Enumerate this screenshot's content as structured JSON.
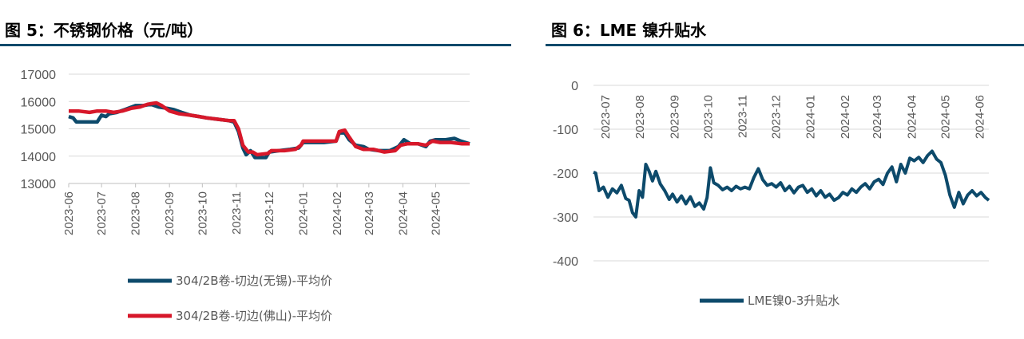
{
  "figures": {
    "left_title": "图 5：不锈钢价格（元/吨）",
    "right_title": "图 6：LME 镍升贴水"
  },
  "colors": {
    "blue": "#0d4a6b",
    "red": "#d7182a",
    "grid": "#d9d9d9",
    "axis": "#bfbfbf",
    "rule": "#0d4a6b"
  },
  "chart_data": [
    {
      "type": "line",
      "title": "图 5：不锈钢价格（元/吨）",
      "x_ticks": [
        "2023-06",
        "2023-07",
        "2023-08",
        "2023-09",
        "2023-10",
        "2023-11",
        "2023-12",
        "2024-01",
        "2024-02",
        "2024-03",
        "2024-04",
        "2024-05"
      ],
      "x_range": [
        "2023-06-01",
        "2024-06-01"
      ],
      "ylim": [
        13000,
        17000
      ],
      "y_ticks": [
        13000,
        14000,
        15000,
        16000,
        17000
      ],
      "grid": true,
      "legend_position": "bottom",
      "series": [
        {
          "name": "304/2B卷-切边(无锡)-平均价",
          "color": "#0d4a6b",
          "points": [
            [
              "2023-06-01",
              15450
            ],
            [
              "2023-06-05",
              15400
            ],
            [
              "2023-06-08",
              15250
            ],
            [
              "2023-06-20",
              15250
            ],
            [
              "2023-06-27",
              15250
            ],
            [
              "2023-07-01",
              15500
            ],
            [
              "2023-07-05",
              15450
            ],
            [
              "2023-07-08",
              15550
            ],
            [
              "2023-07-15",
              15600
            ],
            [
              "2023-07-22",
              15700
            ],
            [
              "2023-08-01",
              15850
            ],
            [
              "2023-08-08",
              15850
            ],
            [
              "2023-08-15",
              15900
            ],
            [
              "2023-08-22",
              15800
            ],
            [
              "2023-08-30",
              15750
            ],
            [
              "2023-09-05",
              15700
            ],
            [
              "2023-09-12",
              15600
            ],
            [
              "2023-09-20",
              15500
            ],
            [
              "2023-09-28",
              15450
            ],
            [
              "2023-10-05",
              15400
            ],
            [
              "2023-10-15",
              15350
            ],
            [
              "2023-10-25",
              15300
            ],
            [
              "2023-10-30",
              15250
            ],
            [
              "2023-11-03",
              14900
            ],
            [
              "2023-11-07",
              14300
            ],
            [
              "2023-11-10",
              14050
            ],
            [
              "2023-11-14",
              14200
            ],
            [
              "2023-11-18",
              13950
            ],
            [
              "2023-11-28",
              13950
            ],
            [
              "2023-12-01",
              14150
            ],
            [
              "2023-12-10",
              14200
            ],
            [
              "2023-12-20",
              14250
            ],
            [
              "2023-12-28",
              14300
            ],
            [
              "2024-01-01",
              14500
            ],
            [
              "2024-01-20",
              14500
            ],
            [
              "2024-01-31",
              14550
            ],
            [
              "2024-02-03",
              14850
            ],
            [
              "2024-02-08",
              14850
            ],
            [
              "2024-02-12",
              14600
            ],
            [
              "2024-02-18",
              14400
            ],
            [
              "2024-02-25",
              14350
            ],
            [
              "2024-03-01",
              14250
            ],
            [
              "2024-03-10",
              14200
            ],
            [
              "2024-03-20",
              14200
            ],
            [
              "2024-03-28",
              14350
            ],
            [
              "2024-04-02",
              14600
            ],
            [
              "2024-04-08",
              14450
            ],
            [
              "2024-04-15",
              14450
            ],
            [
              "2024-04-22",
              14350
            ],
            [
              "2024-04-26",
              14550
            ],
            [
              "2024-05-01",
              14600
            ],
            [
              "2024-05-10",
              14600
            ],
            [
              "2024-05-18",
              14650
            ],
            [
              "2024-05-24",
              14550
            ],
            [
              "2024-06-01",
              14450
            ]
          ]
        },
        {
          "name": "304/2B卷-切边(佛山)-平均价",
          "color": "#d7182a",
          "points": [
            [
              "2023-06-01",
              15650
            ],
            [
              "2023-06-10",
              15650
            ],
            [
              "2023-06-20",
              15600
            ],
            [
              "2023-06-27",
              15650
            ],
            [
              "2023-07-05",
              15650
            ],
            [
              "2023-07-12",
              15600
            ],
            [
              "2023-07-20",
              15650
            ],
            [
              "2023-07-28",
              15750
            ],
            [
              "2023-08-05",
              15800
            ],
            [
              "2023-08-12",
              15900
            ],
            [
              "2023-08-20",
              15950
            ],
            [
              "2023-08-25",
              15850
            ],
            [
              "2023-09-01",
              15650
            ],
            [
              "2023-09-10",
              15550
            ],
            [
              "2023-09-20",
              15500
            ],
            [
              "2023-09-28",
              15450
            ],
            [
              "2023-10-05",
              15400
            ],
            [
              "2023-10-15",
              15350
            ],
            [
              "2023-10-25",
              15300
            ],
            [
              "2023-10-30",
              15300
            ],
            [
              "2023-11-03",
              15000
            ],
            [
              "2023-11-07",
              14400
            ],
            [
              "2023-11-12",
              14150
            ],
            [
              "2023-11-16",
              14150
            ],
            [
              "2023-11-20",
              14050
            ],
            [
              "2023-11-30",
              14100
            ],
            [
              "2023-12-03",
              14200
            ],
            [
              "2023-12-15",
              14200
            ],
            [
              "2023-12-25",
              14250
            ],
            [
              "2023-12-30",
              14400
            ],
            [
              "2024-01-01",
              14550
            ],
            [
              "2024-01-15",
              14550
            ],
            [
              "2024-01-31",
              14550
            ],
            [
              "2024-02-03",
              14900
            ],
            [
              "2024-02-08",
              14950
            ],
            [
              "2024-02-12",
              14700
            ],
            [
              "2024-02-18",
              14350
            ],
            [
              "2024-02-25",
              14250
            ],
            [
              "2024-03-05",
              14250
            ],
            [
              "2024-03-15",
              14150
            ],
            [
              "2024-03-25",
              14200
            ],
            [
              "2024-03-30",
              14400
            ],
            [
              "2024-04-05",
              14450
            ],
            [
              "2024-04-15",
              14450
            ],
            [
              "2024-04-22",
              14400
            ],
            [
              "2024-04-28",
              14550
            ],
            [
              "2024-05-05",
              14500
            ],
            [
              "2024-05-15",
              14500
            ],
            [
              "2024-05-25",
              14450
            ],
            [
              "2024-06-01",
              14450
            ]
          ]
        }
      ]
    },
    {
      "type": "line",
      "title": "图 6：LME 镍升贴水",
      "x_ticks": [
        "2023-07",
        "2023-08",
        "2023-09",
        "2023-10",
        "2023-11",
        "2023-12",
        "2024-01",
        "2024-02",
        "2024-03",
        "2024-04",
        "2024-05",
        "2024-06"
      ],
      "x_range": [
        "2023-07-01",
        "2024-06-20"
      ],
      "ylim": [
        -400,
        0
      ],
      "y_ticks": [
        0,
        -100,
        -200,
        -300,
        -400
      ],
      "grid": true,
      "legend_position": "bottom",
      "series": [
        {
          "name": "LME镍0-3升贴水",
          "color": "#0d4a6b",
          "points": [
            [
              "2023-07-01",
              -198
            ],
            [
              "2023-07-03",
              -200
            ],
            [
              "2023-07-06",
              -240
            ],
            [
              "2023-07-10",
              -232
            ],
            [
              "2023-07-14",
              -255
            ],
            [
              "2023-07-18",
              -236
            ],
            [
              "2023-07-22",
              -245
            ],
            [
              "2023-07-26",
              -228
            ],
            [
              "2023-07-30",
              -258
            ],
            [
              "2023-08-02",
              -262
            ],
            [
              "2023-08-05",
              -290
            ],
            [
              "2023-08-08",
              -300
            ],
            [
              "2023-08-11",
              -240
            ],
            [
              "2023-08-14",
              -255
            ],
            [
              "2023-08-17",
              -180
            ],
            [
              "2023-08-20",
              -196
            ],
            [
              "2023-08-23",
              -218
            ],
            [
              "2023-08-26",
              -196
            ],
            [
              "2023-08-30",
              -225
            ],
            [
              "2023-09-03",
              -240
            ],
            [
              "2023-09-07",
              -260
            ],
            [
              "2023-09-10",
              -248
            ],
            [
              "2023-09-14",
              -266
            ],
            [
              "2023-09-18",
              -252
            ],
            [
              "2023-09-22",
              -270
            ],
            [
              "2023-09-26",
              -254
            ],
            [
              "2023-09-30",
              -276
            ],
            [
              "2023-10-04",
              -268
            ],
            [
              "2023-10-08",
              -282
            ],
            [
              "2023-10-11",
              -256
            ],
            [
              "2023-10-14",
              -188
            ],
            [
              "2023-10-17",
              -222
            ],
            [
              "2023-10-21",
              -228
            ],
            [
              "2023-10-25",
              -238
            ],
            [
              "2023-10-29",
              -232
            ],
            [
              "2023-11-02",
              -240
            ],
            [
              "2023-11-06",
              -230
            ],
            [
              "2023-11-10",
              -236
            ],
            [
              "2023-11-14",
              -232
            ],
            [
              "2023-11-18",
              -236
            ],
            [
              "2023-11-22",
              -210
            ],
            [
              "2023-11-26",
              -190
            ],
            [
              "2023-11-30",
              -215
            ],
            [
              "2023-12-04",
              -228
            ],
            [
              "2023-12-08",
              -224
            ],
            [
              "2023-12-12",
              -232
            ],
            [
              "2023-12-16",
              -222
            ],
            [
              "2023-12-20",
              -240
            ],
            [
              "2023-12-24",
              -230
            ],
            [
              "2023-12-28",
              -245
            ],
            [
              "2024-01-01",
              -232
            ],
            [
              "2024-01-05",
              -228
            ],
            [
              "2024-01-09",
              -244
            ],
            [
              "2024-01-13",
              -236
            ],
            [
              "2024-01-17",
              -252
            ],
            [
              "2024-01-21",
              -240
            ],
            [
              "2024-01-25",
              -255
            ],
            [
              "2024-01-29",
              -248
            ],
            [
              "2024-02-02",
              -262
            ],
            [
              "2024-02-06",
              -256
            ],
            [
              "2024-02-10",
              -244
            ],
            [
              "2024-02-14",
              -250
            ],
            [
              "2024-02-18",
              -236
            ],
            [
              "2024-02-22",
              -244
            ],
            [
              "2024-02-26",
              -232
            ],
            [
              "2024-03-01",
              -224
            ],
            [
              "2024-03-05",
              -236
            ],
            [
              "2024-03-09",
              -220
            ],
            [
              "2024-03-13",
              -214
            ],
            [
              "2024-03-17",
              -226
            ],
            [
              "2024-03-21",
              -200
            ],
            [
              "2024-03-25",
              -186
            ],
            [
              "2024-03-29",
              -220
            ],
            [
              "2024-04-02",
              -180
            ],
            [
              "2024-04-06",
              -200
            ],
            [
              "2024-04-10",
              -166
            ],
            [
              "2024-04-14",
              -172
            ],
            [
              "2024-04-18",
              -164
            ],
            [
              "2024-04-22",
              -176
            ],
            [
              "2024-04-26",
              -160
            ],
            [
              "2024-04-30",
              -150
            ],
            [
              "2024-05-04",
              -168
            ],
            [
              "2024-05-08",
              -176
            ],
            [
              "2024-05-12",
              -205
            ],
            [
              "2024-05-16",
              -250
            ],
            [
              "2024-05-20",
              -278
            ],
            [
              "2024-05-24",
              -244
            ],
            [
              "2024-05-28",
              -270
            ],
            [
              "2024-06-01",
              -250
            ],
            [
              "2024-06-05",
              -240
            ],
            [
              "2024-06-09",
              -252
            ],
            [
              "2024-06-13",
              -244
            ],
            [
              "2024-06-17",
              -256
            ],
            [
              "2024-06-20",
              -262
            ]
          ]
        }
      ]
    }
  ]
}
